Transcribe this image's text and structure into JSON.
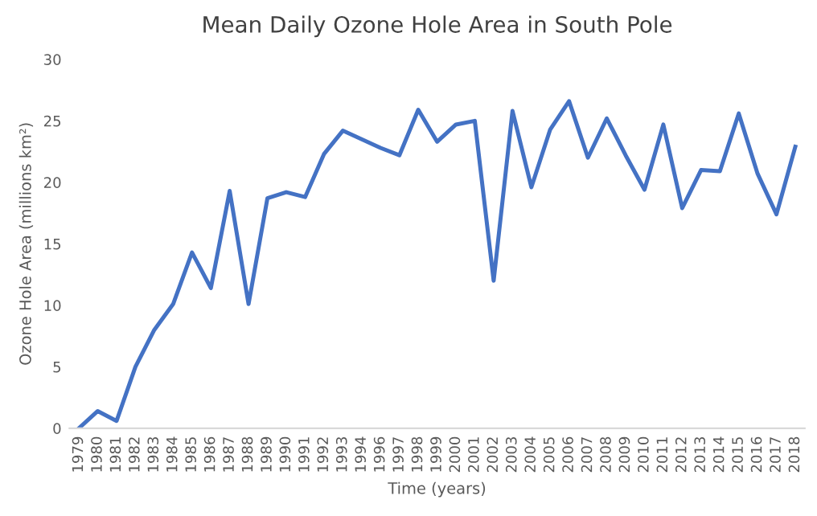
{
  "chart_data": {
    "type": "line",
    "title": "Mean Daily Ozone Hole Area in South Pole",
    "xlabel": "Time (years)",
    "ylabel": "Ozone Hole Area (millions km²)",
    "categories": [
      "1979",
      "1980",
      "1981",
      "1982",
      "1983",
      "1984",
      "1985",
      "1986",
      "1987",
      "1988",
      "1989",
      "1990",
      "1991",
      "1992",
      "1993",
      "1994",
      "1996",
      "1997",
      "1998",
      "1999",
      "2000",
      "2001",
      "2002",
      "2003",
      "2004",
      "2005",
      "2006",
      "2007",
      "2008",
      "2009",
      "2010",
      "2011",
      "2012",
      "2013",
      "2014",
      "2015",
      "2016",
      "2017",
      "2018"
    ],
    "series": [
      {
        "color": "#4472c4",
        "values": [
          0,
          1.4,
          0.6,
          5,
          8,
          10.1,
          14.3,
          11.4,
          19.3,
          10.1,
          18.7,
          19.2,
          18.8,
          22.3,
          24.2,
          23.5,
          22.8,
          22.2,
          25.9,
          23.3,
          24.7,
          25.0,
          12.0,
          25.8,
          19.6,
          24.3,
          26.6,
          22.0,
          25.2,
          22.2,
          19.4,
          24.7,
          17.9,
          21.0,
          20.9,
          25.6,
          20.7,
          17.4,
          22.9
        ]
      }
    ],
    "ylim": [
      0,
      30
    ],
    "yticks": [
      0,
      5,
      10,
      15,
      20,
      25,
      30
    ],
    "grid": false,
    "marker": "none",
    "line_style": "solid"
  }
}
